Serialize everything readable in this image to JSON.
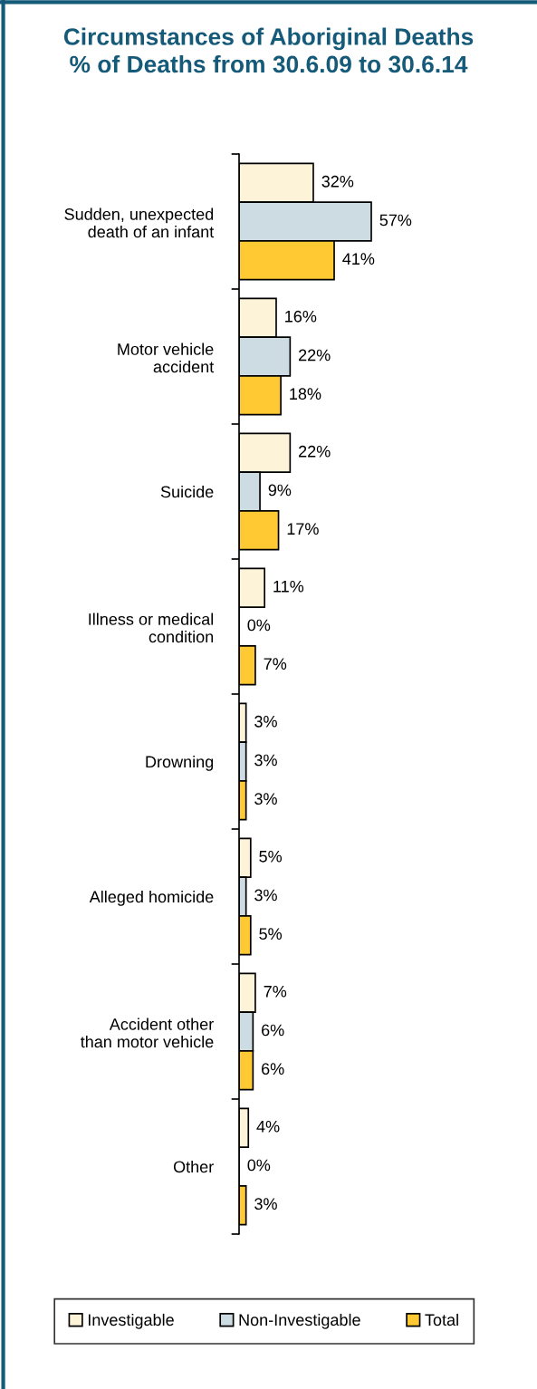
{
  "chart_data": {
    "type": "bar",
    "orientation": "horizontal",
    "title": "Circumstances of Aboriginal Deaths\n% of Deaths from 30.6.09 to 30.6.14",
    "categories": [
      "Sudden, unexpected\ndeath of an infant",
      "Motor vehicle\naccident",
      "Suicide",
      "Illness or medical\ncondition",
      "Drowning",
      "Alleged homicide",
      "Accident other\nthan motor vehicle",
      "Other"
    ],
    "series": [
      {
        "name": "Investigable",
        "color": "#fcf3d9",
        "values": [
          32,
          16,
          22,
          11,
          3,
          5,
          7,
          4
        ],
        "value_labels": [
          "32%",
          "16%",
          "22%",
          "11%",
          "3%",
          "5%",
          "7%",
          "4%"
        ]
      },
      {
        "name": "Non-Investigable",
        "color": "#cddce3",
        "values": [
          57,
          22,
          9,
          0,
          3,
          3,
          6,
          0
        ],
        "value_labels": [
          "57%",
          "22%",
          "9%",
          "0%",
          "3%",
          "3%",
          "6%",
          "0%"
        ]
      },
      {
        "name": "Total",
        "color": "#ffc933",
        "values": [
          41,
          18,
          17,
          7,
          3,
          5,
          6,
          3
        ],
        "value_labels": [
          "41%",
          "18%",
          "17%",
          "7%",
          "3%",
          "5%",
          "6%",
          "3%"
        ]
      }
    ],
    "legend": "bottom",
    "grid": false
  }
}
